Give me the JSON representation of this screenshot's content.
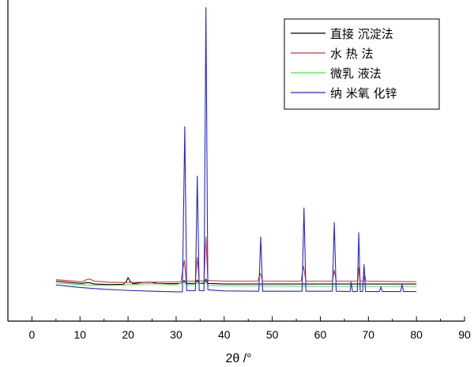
{
  "chart_data": {
    "type": "line",
    "xlabel": "2θ /°",
    "ylabel": "",
    "xlim": [
      -5,
      90
    ],
    "xticks": [
      0,
      10,
      20,
      30,
      40,
      50,
      60,
      70,
      80,
      90
    ],
    "ylim": [
      0,
      100
    ],
    "grid": false,
    "legend_position": "top-right",
    "series": [
      {
        "name": "直接 沉淀法",
        "color": "#000000",
        "points": [
          [
            5,
            4.8
          ],
          [
            8,
            4.3
          ],
          [
            10.5,
            4
          ],
          [
            11.5,
            4.3
          ],
          [
            12,
            4.2
          ],
          [
            13,
            3.8
          ],
          [
            16,
            3.6
          ],
          [
            19,
            3.7
          ],
          [
            19.6,
            4.6
          ],
          [
            20,
            6
          ],
          [
            20.4,
            4.8
          ],
          [
            21,
            3.9
          ],
          [
            23,
            4.3
          ],
          [
            24.5,
            4.5
          ],
          [
            26,
            4
          ],
          [
            29,
            3.9
          ],
          [
            31,
            4
          ],
          [
            31.7,
            5
          ],
          [
            32.2,
            4
          ],
          [
            34,
            4
          ],
          [
            34.4,
            5.2
          ],
          [
            34.8,
            4
          ],
          [
            35.8,
            4
          ],
          [
            36.2,
            5.5
          ],
          [
            36.6,
            4
          ],
          [
            40,
            3.8
          ],
          [
            47.5,
            3.8
          ],
          [
            56.5,
            3.8
          ],
          [
            62.8,
            3.8
          ],
          [
            68,
            3.8
          ],
          [
            80,
            3.8
          ]
        ]
      },
      {
        "name": "水 热 法",
        "color": "#c83c3c",
        "points": [
          [
            5,
            5.3
          ],
          [
            8,
            4.9
          ],
          [
            10.5,
            4.6
          ],
          [
            11.5,
            5.4
          ],
          [
            12,
            5.5
          ],
          [
            13,
            4.8
          ],
          [
            16,
            4.4
          ],
          [
            19,
            4.3
          ],
          [
            24,
            4.4
          ],
          [
            29,
            4.5
          ],
          [
            31,
            4.6
          ],
          [
            31.7,
            12
          ],
          [
            32.1,
            4.8
          ],
          [
            34,
            4.8
          ],
          [
            34.4,
            13
          ],
          [
            34.8,
            4.8
          ],
          [
            35.8,
            4.9
          ],
          [
            36.2,
            20
          ],
          [
            36.6,
            5
          ],
          [
            40,
            4.8
          ],
          [
            47,
            4.8
          ],
          [
            47.5,
            7.5
          ],
          [
            48,
            4.8
          ],
          [
            56,
            4.8
          ],
          [
            56.5,
            10
          ],
          [
            57,
            4.8
          ],
          [
            62.5,
            4.8
          ],
          [
            62.9,
            8.5
          ],
          [
            63.3,
            4.8
          ],
          [
            67.8,
            4.8
          ],
          [
            68,
            9.5
          ],
          [
            68.3,
            4.8
          ],
          [
            69,
            4.8
          ],
          [
            69.2,
            7
          ],
          [
            69.5,
            4.8
          ],
          [
            80,
            4.6
          ]
        ]
      },
      {
        "name": "微乳 液法",
        "color": "#50dc50",
        "points": [
          [
            5,
            4.2
          ],
          [
            8,
            3.8
          ],
          [
            11,
            3.5
          ],
          [
            14,
            3.3
          ],
          [
            18,
            3.4
          ],
          [
            21,
            3.6
          ],
          [
            24,
            3.9
          ],
          [
            27,
            3.8
          ],
          [
            30,
            3.5
          ],
          [
            31.7,
            4.5
          ],
          [
            32.2,
            3.4
          ],
          [
            34.4,
            3.9
          ],
          [
            36.2,
            4.5
          ],
          [
            36.6,
            3.3
          ],
          [
            40,
            3.2
          ],
          [
            50,
            3.1
          ],
          [
            60,
            3
          ],
          [
            70,
            3
          ],
          [
            80,
            3
          ]
        ]
      },
      {
        "name": "纳 米氧 化锌",
        "color": "#2828c8",
        "points": [
          [
            5,
            3.5
          ],
          [
            10,
            2.6
          ],
          [
            15,
            2
          ],
          [
            20,
            1.6
          ],
          [
            25,
            1.3
          ],
          [
            30,
            1.1
          ],
          [
            31.3,
            1.1
          ],
          [
            31.8,
            58
          ],
          [
            32.2,
            1.5
          ],
          [
            34,
            1.5
          ],
          [
            34.4,
            41
          ],
          [
            34.8,
            1.5
          ],
          [
            35.8,
            1.5
          ],
          [
            36.2,
            99
          ],
          [
            36.6,
            1.8
          ],
          [
            40,
            1.4
          ],
          [
            47.2,
            1.3
          ],
          [
            47.6,
            20
          ],
          [
            48,
            1.3
          ],
          [
            56.2,
            1.3
          ],
          [
            56.6,
            30
          ],
          [
            57,
            1.3
          ],
          [
            62.5,
            1.3
          ],
          [
            62.9,
            25
          ],
          [
            63.3,
            1.3
          ],
          [
            66.2,
            1.2
          ],
          [
            66.4,
            4.5
          ],
          [
            66.7,
            1.2
          ],
          [
            67.7,
            1.2
          ],
          [
            68,
            21.5
          ],
          [
            68.3,
            1.2
          ],
          [
            68.8,
            1.2
          ],
          [
            69.1,
            10.5
          ],
          [
            69.4,
            1.2
          ],
          [
            72.3,
            1.2
          ],
          [
            72.6,
            2.8
          ],
          [
            72.9,
            1.2
          ],
          [
            76.7,
            1.2
          ],
          [
            77,
            3.6
          ],
          [
            77.3,
            1.2
          ],
          [
            80,
            1.2
          ]
        ]
      }
    ]
  }
}
